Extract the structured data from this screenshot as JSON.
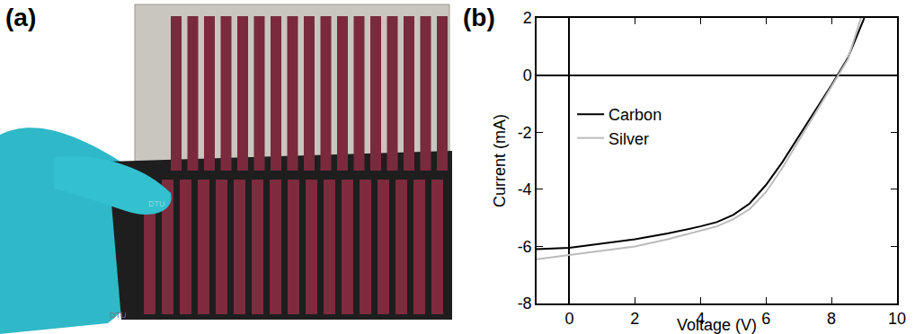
{
  "panels": [
    {
      "label": "(a)",
      "texts": [
        "DTU",
        "DTU"
      ]
    },
    {
      "label": "(b)"
    }
  ],
  "chart_data": {
    "type": "line",
    "x_label": "Voltage (V)",
    "y_label": "Current (mA)",
    "xlim": [
      -1,
      10
    ],
    "xticks": [
      0,
      2,
      4,
      6,
      8,
      10
    ],
    "ylim": [
      -8,
      2
    ],
    "yticks": [
      -8,
      -6,
      -4,
      -2,
      0,
      2
    ],
    "grid": false,
    "legend": "upper left",
    "series": [
      {
        "name": "Carbon",
        "color": "#000000",
        "line_style": "solid",
        "x": [
          -1,
          0,
          1,
          2,
          3,
          4,
          4.5,
          5,
          5.5,
          6,
          6.5,
          7,
          7.5,
          8,
          8.5,
          9
        ],
        "values": [
          -6.1,
          -6.05,
          -5.9,
          -5.75,
          -5.55,
          -5.3,
          -5.15,
          -4.9,
          -4.5,
          -3.85,
          -3.05,
          -2.15,
          -1.25,
          -0.35,
          0.6,
          2.0
        ]
      },
      {
        "name": "Silver",
        "color": "#bbbbbb",
        "line_style": "solid",
        "x": [
          -1,
          0,
          1,
          2,
          3,
          4,
          4.5,
          5,
          5.5,
          6,
          6.5,
          7,
          7.5,
          8,
          8.5,
          8.9
        ],
        "values": [
          -6.45,
          -6.3,
          -6.15,
          -6.0,
          -5.75,
          -5.45,
          -5.3,
          -5.05,
          -4.7,
          -4.1,
          -3.25,
          -2.3,
          -1.35,
          -0.4,
          0.55,
          2.0
        ]
      }
    ]
  }
}
